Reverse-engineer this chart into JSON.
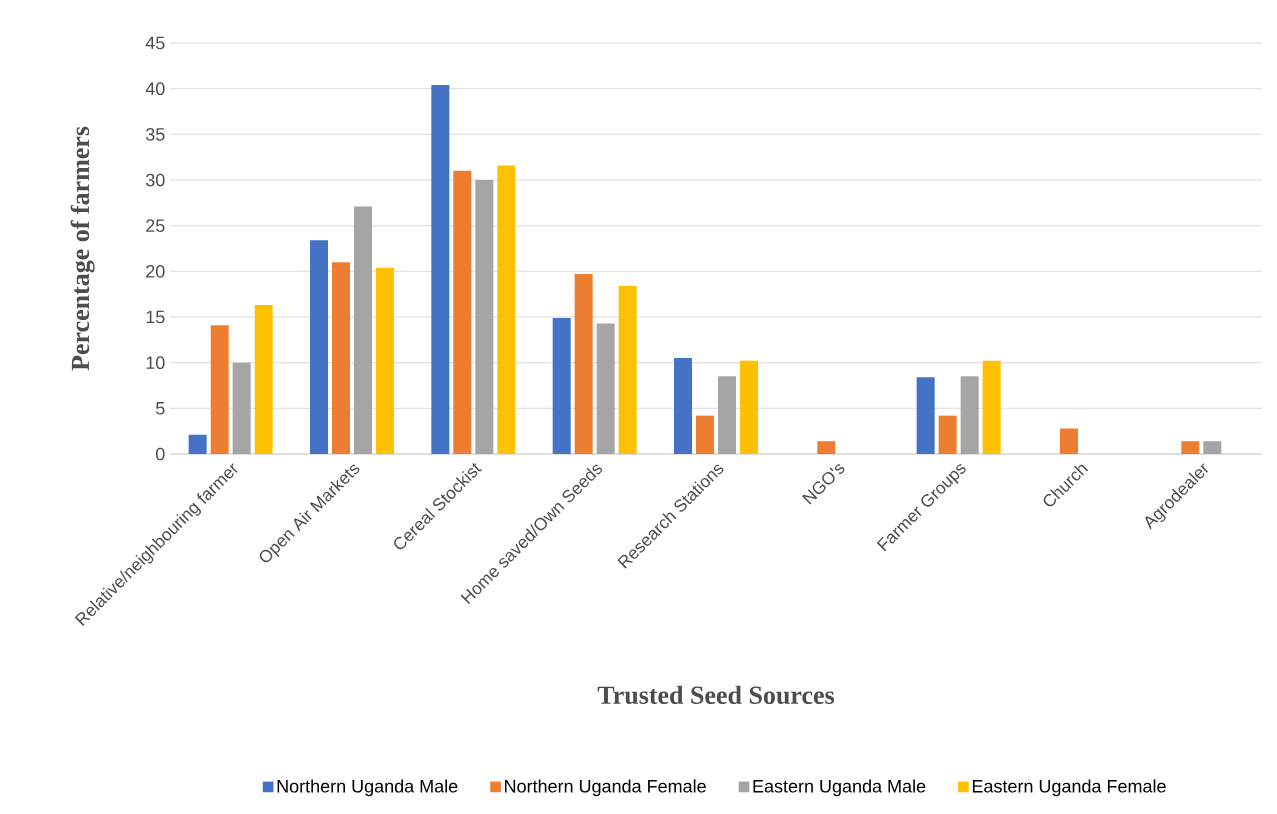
{
  "chart_data": {
    "type": "bar",
    "xlabel": "Trusted Seed Sources",
    "ylabel": "Percentage of farmers",
    "categories": [
      "Relative/neighbouring farmer",
      "Open Air Markets",
      "Cereal Stockist",
      "Home saved/Own Seeds",
      "Research Stations",
      "NGO's",
      "Farmer Groups",
      "Church",
      "Agrodealer"
    ],
    "series": [
      {
        "name": "Northern Uganda Male",
        "color": "#4472c4",
        "values": [
          2.1,
          23.4,
          40.4,
          14.9,
          10.5,
          0,
          8.4,
          0,
          0
        ]
      },
      {
        "name": "Northern Uganda Female",
        "color": "#ed7d31",
        "values": [
          14.1,
          21,
          31,
          19.7,
          4.2,
          1.4,
          4.2,
          2.8,
          1.4
        ]
      },
      {
        "name": "Eastern Uganda Male",
        "color": "#a5a5a5",
        "values": [
          10,
          27.1,
          30,
          14.3,
          8.5,
          0,
          8.5,
          0,
          1.4
        ]
      },
      {
        "name": "Eastern Uganda Female",
        "color": "#ffc000",
        "values": [
          16.3,
          20.4,
          31.6,
          18.4,
          10.2,
          0,
          10.2,
          0,
          0
        ]
      }
    ],
    "ylim": [
      0,
      45
    ],
    "yticks": [
      0,
      5,
      10,
      15,
      20,
      25,
      30,
      35,
      40,
      45
    ],
    "grid": "y",
    "legend": "bottom"
  }
}
